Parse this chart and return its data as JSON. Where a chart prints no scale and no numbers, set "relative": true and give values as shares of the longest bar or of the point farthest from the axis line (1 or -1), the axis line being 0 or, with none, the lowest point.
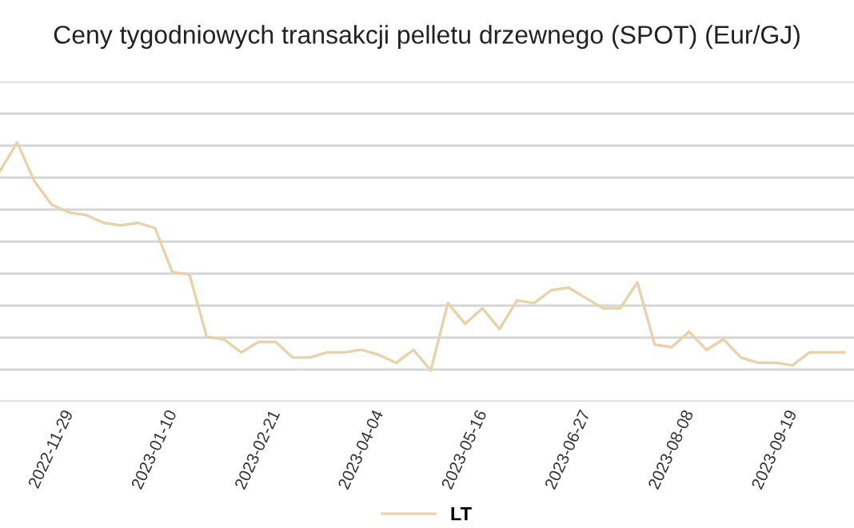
{
  "chart_data": {
    "type": "line",
    "title": "Ceny tygodniowych transakcji pelletu drzewnego (SPOT) (Eur/GJ)",
    "relative": true,
    "x": [
      "2022-11-08",
      "2022-11-15",
      "2022-11-22",
      "2022-11-29",
      "2022-12-06",
      "2022-12-13",
      "2022-12-20",
      "2022-12-27",
      "2023-01-03",
      "2023-01-10",
      "2023-01-17",
      "2023-01-24",
      "2023-01-31",
      "2023-02-07",
      "2023-02-14",
      "2023-02-21",
      "2023-02-28",
      "2023-03-07",
      "2023-03-14",
      "2023-03-21",
      "2023-03-28",
      "2023-04-04",
      "2023-04-11",
      "2023-04-18",
      "2023-04-25",
      "2023-05-02",
      "2023-05-09",
      "2023-05-16",
      "2023-05-23",
      "2023-05-30",
      "2023-06-06",
      "2023-06-13",
      "2023-06-20",
      "2023-06-27",
      "2023-07-04",
      "2023-07-11",
      "2023-07-18",
      "2023-07-25",
      "2023-08-01",
      "2023-08-08",
      "2023-08-15",
      "2023-08-22",
      "2023-08-29",
      "2023-09-05",
      "2023-09-12",
      "2023-09-19",
      "2023-09-26",
      "2023-10-03",
      "2023-10-10",
      "2023-10-17"
    ],
    "xlim": [
      "2022-11-08",
      "2023-10-21"
    ],
    "xticks": [
      "2022-11-29",
      "2023-01-10",
      "2023-02-21",
      "2023-04-04",
      "2023-05-16",
      "2023-06-27",
      "2023-08-08",
      "2023-09-19"
    ],
    "series": [
      {
        "name": "LT",
        "color": "#e8d3a8",
        "values": [
          0.89,
          1,
          0.85,
          0.76,
          0.73,
          0.72,
          0.69,
          0.68,
          0.69,
          0.67,
          0.5,
          0.49,
          0.25,
          0.24,
          0.19,
          0.23,
          0.23,
          0.17,
          0.17,
          0.19,
          0.19,
          0.2,
          0.18,
          0.15,
          0.2,
          0.12,
          0.38,
          0.3,
          0.36,
          0.28,
          0.39,
          0.38,
          0.43,
          0.44,
          0.4,
          0.36,
          0.36,
          0.46,
          0.22,
          0.21,
          0.27,
          0.2,
          0.24,
          0.17,
          0.15,
          0.15,
          0.14,
          0.19,
          0.19,
          0.19
        ]
      }
    ],
    "grid": "y",
    "legend": "bottom",
    "line_style": "solid",
    "marker": "none"
  }
}
